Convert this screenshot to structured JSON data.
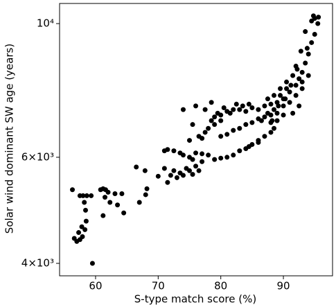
{
  "chart_data": {
    "type": "scatter",
    "xlabel": "S-type match score (%)",
    "ylabel": "Solar wind dominant SW age (years)",
    "color": "#000000",
    "log_y": true,
    "xlim": [
      54.25,
      97.85
    ],
    "ylim": [
      3814,
      10800
    ],
    "xticks": [
      60,
      70,
      80,
      90
    ],
    "yticks": [
      {
        "value": 4000,
        "label": "4×10³"
      },
      {
        "value": 6000,
        "label": "6×10³"
      },
      {
        "value": 10000,
        "label": "10⁴"
      }
    ],
    "x": [
      56.3,
      56.6,
      57,
      57.5,
      57.3,
      57.8,
      58.5,
      58.3,
      57.9,
      57.5,
      58,
      58.6,
      59.3,
      58.4,
      58.2,
      59.5,
      60.8,
      61.2,
      61.6,
      62,
      61.5,
      61.2,
      62.3,
      63.1,
      64.2,
      64.5,
      63.5,
      66.5,
      67.9,
      68.2,
      68,
      67,
      70,
      71,
      71.5,
      72,
      72.5,
      73,
      73.5,
      74,
      74.5,
      75,
      75.5,
      76,
      76.5,
      77,
      71,
      71.5,
      72.5,
      73.5,
      74,
      75,
      75.5,
      74,
      75,
      75.5,
      76.5,
      77,
      77.5,
      78,
      78.5,
      79,
      79.5,
      80,
      81,
      82,
      83,
      84,
      85,
      80.5,
      81.5,
      79,
      80,
      76,
      77,
      78,
      79,
      80,
      81,
      82,
      83,
      84,
      85,
      86,
      87,
      88,
      88.5,
      86,
      84.5,
      80,
      81,
      82,
      83,
      84,
      85,
      86,
      87,
      88,
      89,
      86,
      87,
      88,
      89,
      90,
      91,
      92,
      92.5,
      93,
      93.5,
      94,
      94.5,
      95,
      95.5,
      94.8,
      95.6,
      93.5,
      92.8,
      92,
      91.5,
      90.5,
      89.5,
      88.5,
      87.5,
      90,
      91,
      92,
      93,
      91.5,
      92.5,
      90,
      89,
      88,
      86.5,
      87.5,
      88.5,
      89.5,
      90.5,
      93.8,
      94.5,
      95,
      93,
      94,
      92.2,
      91.2,
      90.3,
      89.2,
      88.2,
      84.5,
      83.5,
      82.5,
      78.5,
      77.5,
      76
    ],
    "values": [
      5300,
      4400,
      4350,
      4380,
      4500,
      4600,
      4700,
      4550,
      4430,
      5180,
      5180,
      5180,
      5180,
      4900,
      5050,
      4000,
      5300,
      5320,
      5300,
      5250,
      5150,
      4800,
      5050,
      5220,
      5220,
      4850,
      5000,
      5780,
      5700,
      5320,
      5200,
      5050,
      5580,
      5750,
      5450,
      5600,
      5700,
      5550,
      5650,
      5600,
      5750,
      5700,
      5620,
      5800,
      5700,
      5900,
      6150,
      6180,
      6150,
      6100,
      6050,
      6000,
      5950,
      7200,
      6400,
      6800,
      6500,
      6450,
      6600,
      6700,
      6900,
      7000,
      7100,
      7050,
      7150,
      7200,
      7200,
      7150,
      7250,
      7250,
      7100,
      6800,
      6900,
      6100,
      6080,
      6050,
      5950,
      5980,
      6000,
      6050,
      6150,
      6200,
      6300,
      6400,
      6500,
      6600,
      6700,
      6350,
      6250,
      6500,
      6550,
      6650,
      6700,
      6800,
      6850,
      6950,
      7000,
      7050,
      7100,
      7200,
      7300,
      7350,
      7400,
      7500,
      7700,
      7900,
      8100,
      8300,
      8600,
      8900,
      9300,
      9600,
      10000,
      10300,
      10250,
      9700,
      9000,
      8500,
      8200,
      7800,
      7600,
      7200,
      7100,
      7300,
      7400,
      7600,
      7800,
      7100,
      7300,
      7050,
      6900,
      6850,
      6900,
      7500,
      7600,
      7800,
      8000,
      9100,
      10100,
      10200,
      8000,
      8200,
      8400,
      7900,
      7500,
      7300,
      6900,
      7350,
      7300,
      7350,
      7400,
      7200,
      7300
    ]
  }
}
